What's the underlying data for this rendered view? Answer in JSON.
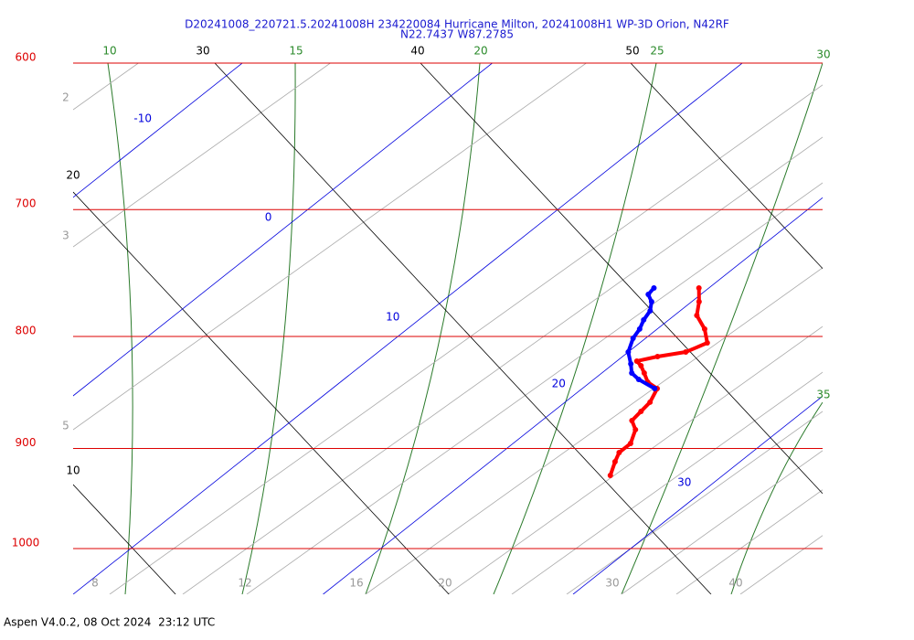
{
  "title": "D20241008_220721.5.20241008H 234220084 Hurricane Milton, 20241008H1 WP-3D Orion, N42RF",
  "subtitle": "N22.7437 W87.2785",
  "footer": "Aspen V4.0.2, 08 Oct 2024  23:12 UTC",
  "pressure_levels": [
    600,
    700,
    800,
    900,
    1000
  ],
  "isotherms": [
    -10,
    0,
    10,
    20,
    30
  ],
  "dry_adiabat_labels": [
    10,
    20,
    30,
    40,
    50
  ],
  "moist_adiabat_labels": [
    10,
    15,
    20,
    25,
    30,
    35
  ],
  "mixing_ratio_labels": [
    2,
    3,
    5,
    8,
    12,
    16,
    20,
    30,
    40
  ],
  "temperature": {
    "color": "#ff0000",
    "pressure": [
      925.9,
      912.7,
      903.9,
      895.3,
      882.4,
      874.0,
      865.6,
      857.3,
      845.1,
      839.4,
      831.4,
      825.0,
      821.0,
      817.1,
      813.2,
      805.4,
      793.8,
      782.5,
      771.3,
      760.2
    ],
    "values": [
      25.5,
      25.0,
      24.7,
      24.7,
      24.2,
      23.6,
      23.5,
      23.4,
      23.0,
      22.3,
      21.7,
      21.2,
      20.8,
      21.4,
      22.3,
      22.7,
      21.9,
      20.9,
      20.3,
      19.6
    ]
  },
  "dewpoint": {
    "color": "#0000ff",
    "pressure": [
      845.1,
      837.0,
      831.4,
      823.4,
      813.2,
      801.5,
      793.8,
      786.2,
      778.7,
      771.3,
      765.4,
      760.2
    ],
    "values": [
      22.9,
      21.8,
      21.2,
      20.7,
      20.0,
      19.5,
      19.3,
      19.0,
      18.8,
      18.4,
      17.9,
      17.8
    ]
  }
}
